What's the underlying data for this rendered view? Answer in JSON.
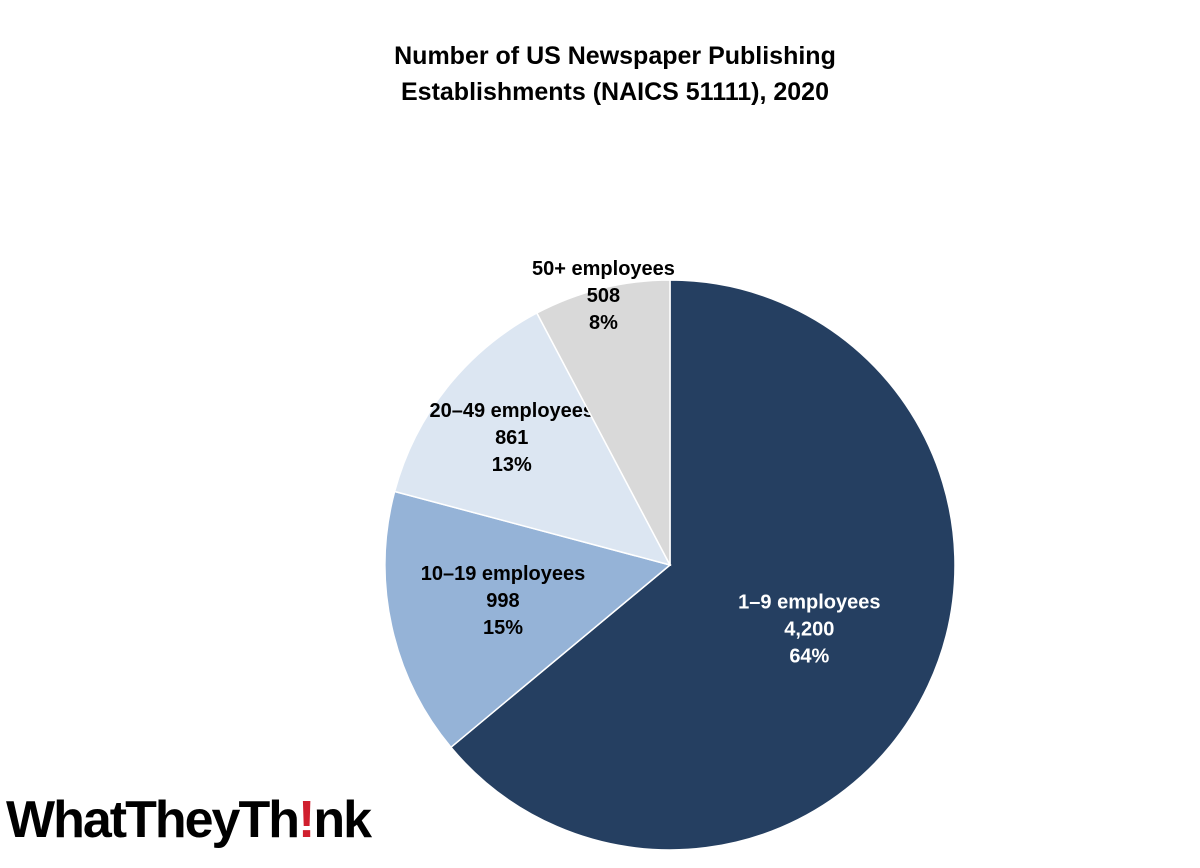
{
  "chart_data": {
    "type": "pie",
    "title": "Number of US Newspaper Publishing\nEstablishments (NAICS 51111), 2020",
    "categories": [
      "1–9 employees",
      "10–19 employees",
      "20–49 employees",
      "50+ employees"
    ],
    "values": [
      4200,
      998,
      861,
      508
    ],
    "value_labels": [
      "4,200",
      "998",
      "861",
      "508"
    ],
    "percent_values": [
      64,
      15,
      13,
      8
    ],
    "percent_labels": [
      "64%",
      "15%",
      "13%",
      "8%"
    ],
    "colors": [
      "#253f61",
      "#95b3d7",
      "#dce6f2",
      "#d9d9d9"
    ]
  },
  "logo": [
    "WhatTheyTh",
    "!",
    "nk"
  ]
}
